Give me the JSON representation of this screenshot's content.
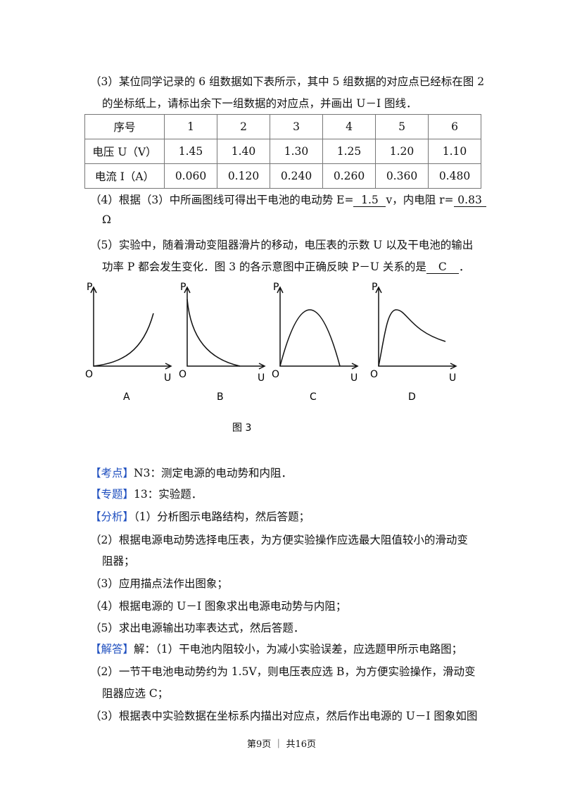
{
  "question3": {
    "lines": [
      "（3）某位同学记录的 6 组数据如下表所示，其中 5 组数据的对应点已经标在图 2",
      "的坐标纸上，请标出余下一组数据的对应点，并画出 U－I 图线．"
    ]
  },
  "table": {
    "header": [
      "序号",
      "1",
      "2",
      "3",
      "4",
      "5",
      "6"
    ],
    "rows": [
      [
        "电压 U（V）",
        "1.45",
        "1.40",
        "1.30",
        "1.25",
        "1.20",
        "1.10"
      ],
      [
        "电流 I（A）",
        "0.060",
        "0.120",
        "0.240",
        "0.260",
        "0.360",
        "0.480"
      ]
    ]
  },
  "question4": {
    "prefix": "（4）根据（3）中所画图线可得出干电池的电动势 E=",
    "emf": "1.5",
    "middle": "v，内电阻 r=",
    "resistance": "0.83",
    "unit": "Ω"
  },
  "question5": {
    "line1": "（5）实验中，随着滑动变阻器滑片的移动，电压表的示数 U 以及干电池的输出",
    "line2": "功率 P 都会发生变化．图 3 的各示意图中正确反映 P－U 关系的是",
    "answer": "C",
    "suffix": "．"
  },
  "figure": {
    "graphs": [
      {
        "y_label": "P",
        "origin": "O",
        "x_label": "U",
        "caption": "A"
      },
      {
        "y_label": "P",
        "origin": "O",
        "x_label": "U",
        "caption": "B"
      },
      {
        "y_label": "P",
        "origin": "O",
        "x_label": "U",
        "caption": "C"
      },
      {
        "y_label": "P",
        "origin": "O",
        "x_label": "U",
        "caption": "D"
      }
    ],
    "caption": "图 3"
  },
  "analysis": {
    "lines": [
      {
        "tag": "【考点】",
        "text": "N3：测定电源的电动势和内阻．"
      },
      {
        "tag": "【专题】",
        "text": "13：实验题．"
      },
      {
        "tag": "【分析】",
        "text": "（1）分析图示电路结构，然后答题；"
      },
      {
        "text": "（2）根据电源电动势选择电压表，为方便实验操作应选最大阻值较小的滑动变"
      },
      {
        "text": "阻器；"
      },
      {
        "text": "（3）应用描点法作出图象；"
      },
      {
        "text": "（4）根据电源的 U－I 图象求出电源电动势与内阻；"
      },
      {
        "text": "（5）求出电源输出功率表达式，然后答题．"
      },
      {
        "tag": "【解答】",
        "text": "解：（1）干电池内阻较小，为减小实验误差，应选题甲所示电路图；"
      },
      {
        "text": "（2）一节干电池电动势约为 1.5V，则电压表应选 B，为方便实验操作，滑动变"
      },
      {
        "text": "阻器应选 C；"
      },
      {
        "text": "（3）根据表中实验数据在坐标系内描出对应点，然后作出电源的 U－I 图象如图"
      }
    ]
  },
  "footer": "第9页 ｜ 共16页"
}
